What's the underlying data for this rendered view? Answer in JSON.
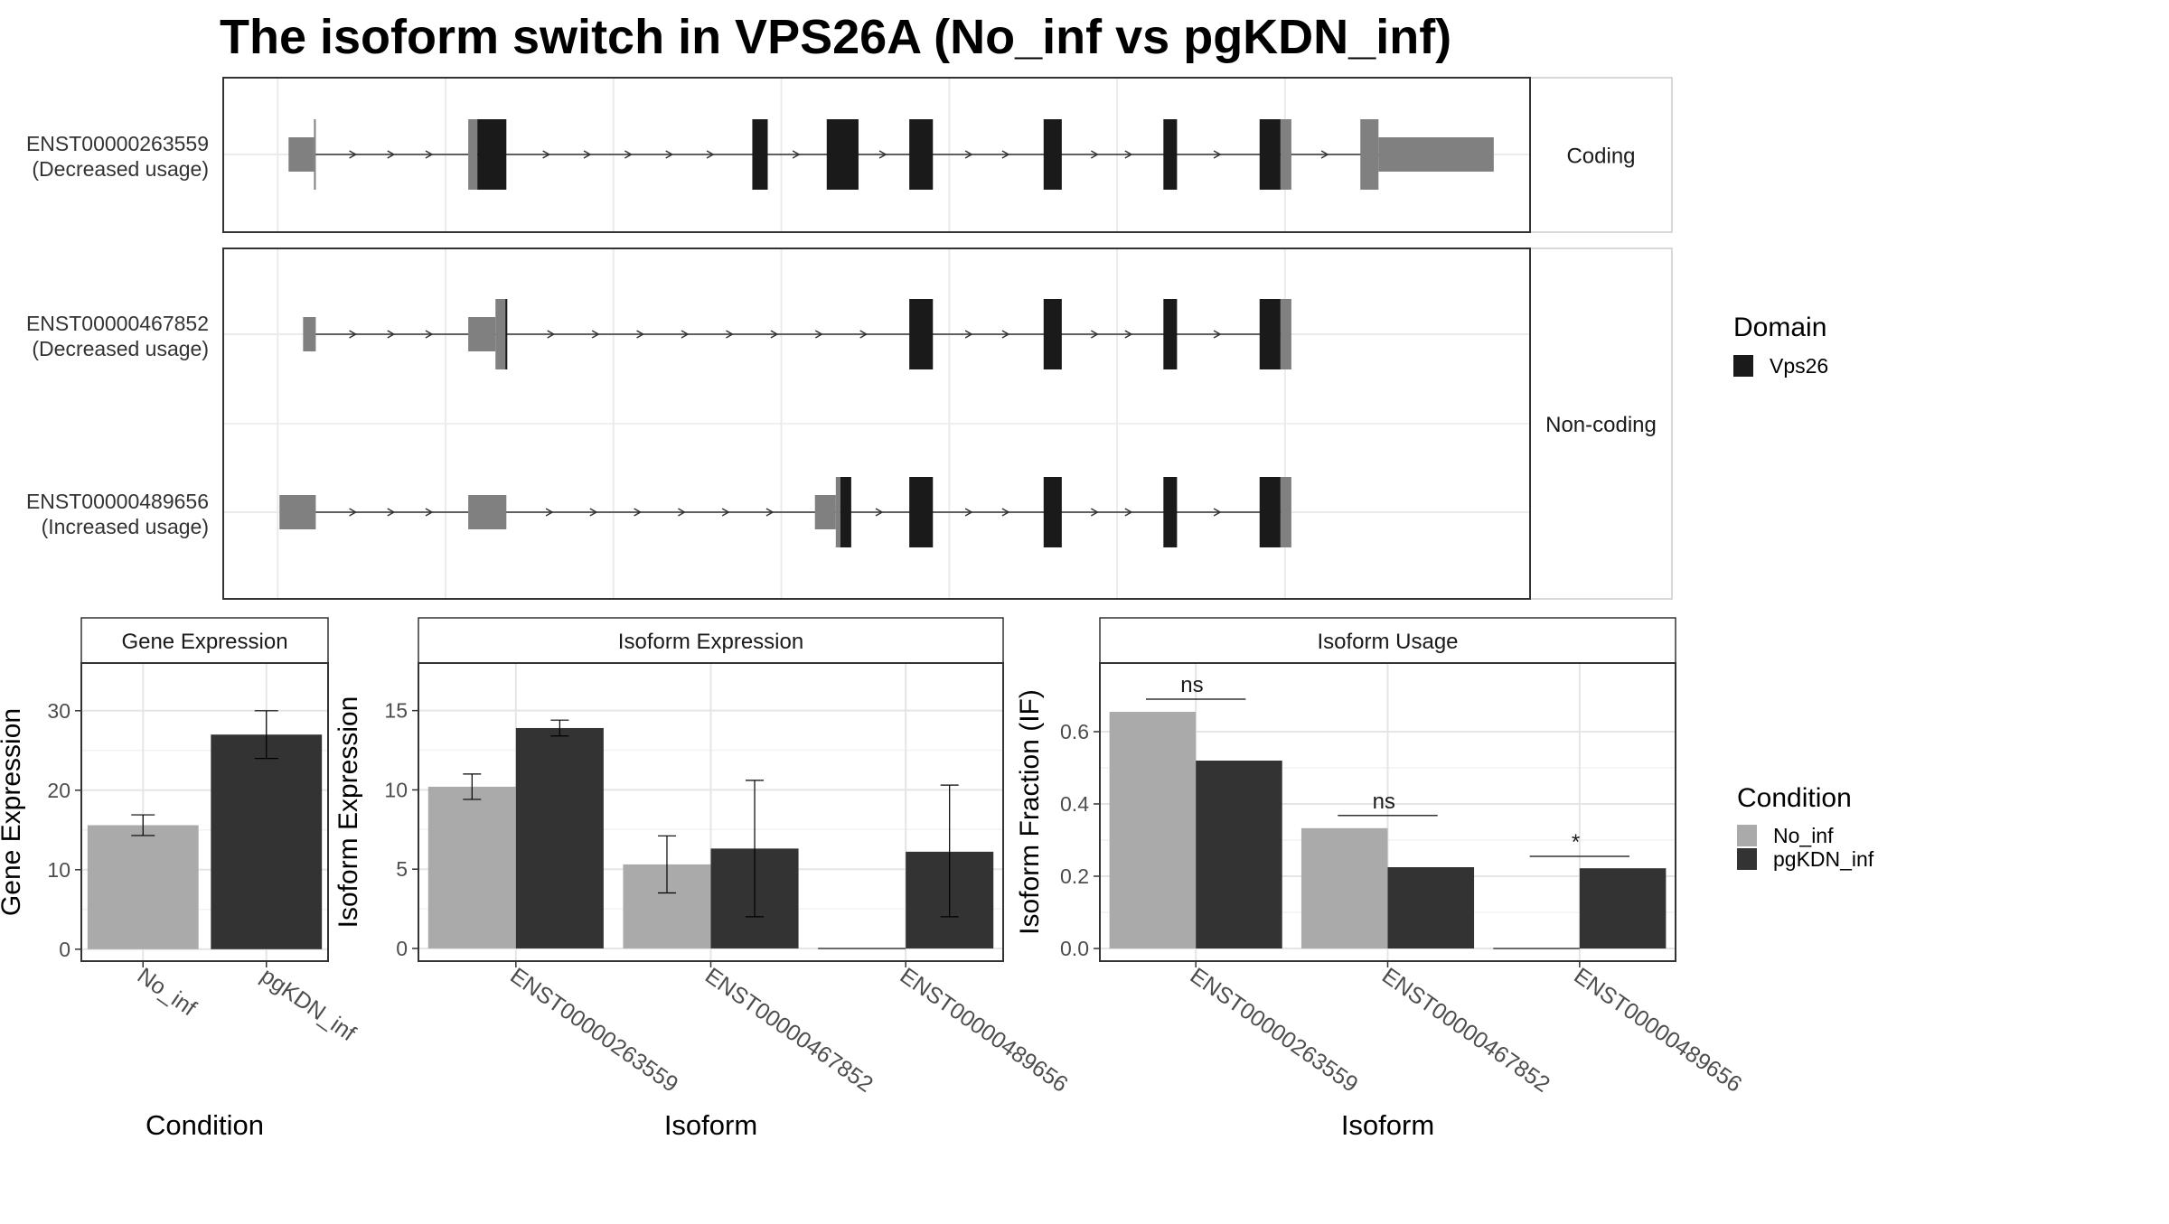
{
  "title": "The isoform switch in VPS26A (No_inf vs pgKDN_inf)",
  "structure": {
    "facets": [
      {
        "label": "Coding"
      },
      {
        "label": "Non-coding"
      }
    ],
    "isoforms": [
      {
        "id": "ENST00000263559",
        "usage": "(Decreased usage)",
        "facet": 0,
        "line": [
          100,
          1330
        ],
        "segments": [
          {
            "s": 72,
            "e": 100,
            "type": "utr"
          },
          {
            "s": 100,
            "e": 102,
            "type": "cds"
          },
          {
            "s": 270,
            "e": 280,
            "type": "cds"
          },
          {
            "s": 280,
            "e": 312,
            "type": "domain"
          },
          {
            "s": 583,
            "e": 600,
            "type": "domain"
          },
          {
            "s": 665,
            "e": 700,
            "type": "domain"
          },
          {
            "s": 756,
            "e": 782,
            "type": "domain"
          },
          {
            "s": 904,
            "e": 924,
            "type": "domain"
          },
          {
            "s": 1036,
            "e": 1051,
            "type": "domain"
          },
          {
            "s": 1142,
            "e": 1165,
            "type": "domain"
          },
          {
            "s": 1165,
            "e": 1177,
            "type": "cds"
          },
          {
            "s": 1253,
            "e": 1273,
            "type": "cds"
          },
          {
            "s": 1273,
            "e": 1400,
            "type": "utr"
          }
        ]
      },
      {
        "id": "ENST00000467852",
        "usage": "(Decreased usage)",
        "facet": 1,
        "line": [
          102,
          1165
        ],
        "segments": [
          {
            "s": 88,
            "e": 102,
            "type": "utr"
          },
          {
            "s": 270,
            "e": 300,
            "type": "utr"
          },
          {
            "s": 300,
            "e": 312,
            "type": "cds"
          },
          {
            "s": 311,
            "e": 313,
            "type": "domain"
          },
          {
            "s": 756,
            "e": 782,
            "type": "domain"
          },
          {
            "s": 904,
            "e": 924,
            "type": "domain"
          },
          {
            "s": 1036,
            "e": 1051,
            "type": "domain"
          },
          {
            "s": 1142,
            "e": 1165,
            "type": "domain"
          },
          {
            "s": 1165,
            "e": 1177,
            "type": "cds"
          }
        ]
      },
      {
        "id": "ENST00000489656",
        "usage": "(Increased usage)",
        "facet": 1,
        "line": [
          102,
          1165
        ],
        "segments": [
          {
            "s": 62,
            "e": 102,
            "type": "utr"
          },
          {
            "s": 270,
            "e": 312,
            "type": "utr"
          },
          {
            "s": 652,
            "e": 675,
            "type": "utr"
          },
          {
            "s": 675,
            "e": 680,
            "type": "cds"
          },
          {
            "s": 680,
            "e": 692,
            "type": "domain"
          },
          {
            "s": 756,
            "e": 782,
            "type": "domain"
          },
          {
            "s": 904,
            "e": 924,
            "type": "domain"
          },
          {
            "s": 1036,
            "e": 1051,
            "type": "domain"
          },
          {
            "s": 1142,
            "e": 1165,
            "type": "domain"
          },
          {
            "s": 1165,
            "e": 1177,
            "type": "cds"
          }
        ]
      }
    ]
  },
  "legend_domain": {
    "title": "Domain",
    "items": [
      {
        "label": "Vps26",
        "color": "#1a1a1a"
      }
    ]
  },
  "legend_condition": {
    "title": "Condition",
    "items": [
      {
        "label": "No_inf",
        "color": "#aaaaaa"
      },
      {
        "label": "pgKDN_inf",
        "color": "#333333"
      }
    ]
  },
  "chart_data": [
    {
      "type": "bar",
      "title": "Gene Expression",
      "xlabel": "Condition",
      "ylabel": "Gene Expression",
      "categories": [
        "No_inf",
        "pgKDN_inf"
      ],
      "values": [
        15.6,
        27.0
      ],
      "err_low": [
        14.3,
        24.0
      ],
      "err_high": [
        16.9,
        30.0
      ],
      "colors": [
        "#aaaaaa",
        "#333333"
      ],
      "ylim": [
        -1.5,
        36
      ],
      "yticks": [
        0,
        10,
        20,
        30
      ]
    },
    {
      "type": "bar",
      "title": "Isoform Expression",
      "xlabel": "Isoform",
      "ylabel": "Isoform Expression",
      "categories": [
        "ENST00000263559",
        "ENST00000467852",
        "ENST00000489656"
      ],
      "series": [
        {
          "name": "No_inf",
          "values": [
            10.2,
            5.3,
            0.0
          ],
          "err_low": [
            9.4,
            3.5,
            0.0
          ],
          "err_high": [
            11.0,
            7.1,
            0.0
          ]
        },
        {
          "name": "pgKDN_inf",
          "values": [
            13.9,
            6.3,
            6.1
          ],
          "err_low": [
            13.4,
            2.0,
            2.0
          ],
          "err_high": [
            14.4,
            10.6,
            10.3
          ]
        }
      ],
      "ylim": [
        -0.8,
        18
      ],
      "yticks": [
        0,
        5,
        10,
        15
      ]
    },
    {
      "type": "bar",
      "title": "Isoform Usage",
      "xlabel": "Isoform",
      "ylabel": "Isoform Fraction (IF)",
      "categories": [
        "ENST00000263559",
        "ENST00000467852",
        "ENST00000489656"
      ],
      "series": [
        {
          "name": "No_inf",
          "values": [
            0.655,
            0.333,
            0.0
          ]
        },
        {
          "name": "pgKDN_inf",
          "values": [
            0.52,
            0.225,
            0.222
          ]
        }
      ],
      "significance": [
        {
          "label": "ns",
          "y": 0.69
        },
        {
          "label": "ns",
          "y": 0.368
        },
        {
          "label": "*",
          "y": 0.255
        }
      ],
      "ylim": [
        -0.035,
        0.79
      ],
      "yticks": [
        0.0,
        0.2,
        0.4,
        0.6
      ]
    }
  ]
}
